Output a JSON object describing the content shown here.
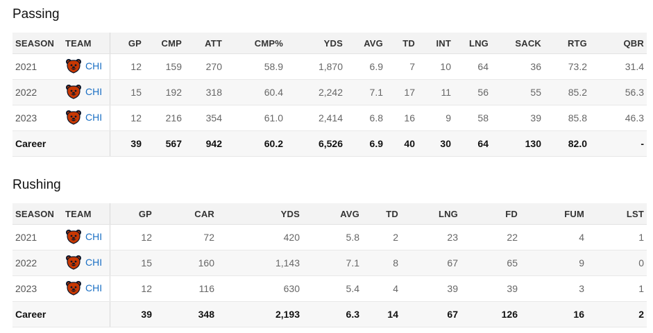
{
  "passing": {
    "title": "Passing",
    "headers": [
      "SEASON",
      "TEAM",
      "GP",
      "CMP",
      "ATT",
      "CMP%",
      "YDS",
      "AVG",
      "TD",
      "INT",
      "LNG",
      "SACK",
      "RTG",
      "QBR"
    ],
    "rows": [
      {
        "season": "2021",
        "team": "CHI",
        "logo": "chicago-bears-logo-icon",
        "values": [
          "12",
          "159",
          "270",
          "58.9",
          "1,870",
          "6.9",
          "7",
          "10",
          "64",
          "36",
          "73.2",
          "31.4"
        ]
      },
      {
        "season": "2022",
        "team": "CHI",
        "logo": "chicago-bears-logo-icon",
        "values": [
          "15",
          "192",
          "318",
          "60.4",
          "2,242",
          "7.1",
          "17",
          "11",
          "56",
          "55",
          "85.2",
          "56.3"
        ]
      },
      {
        "season": "2023",
        "team": "CHI",
        "logo": "chicago-bears-logo-icon",
        "values": [
          "12",
          "216",
          "354",
          "61.0",
          "2,414",
          "6.8",
          "16",
          "9",
          "58",
          "39",
          "85.8",
          "46.3"
        ]
      }
    ],
    "career": {
      "label": "Career",
      "values": [
        "39",
        "567",
        "942",
        "60.2",
        "6,526",
        "6.9",
        "40",
        "30",
        "64",
        "130",
        "82.0",
        "-"
      ]
    }
  },
  "rushing": {
    "title": "Rushing",
    "headers": [
      "SEASON",
      "TEAM",
      "GP",
      "CAR",
      "YDS",
      "AVG",
      "TD",
      "LNG",
      "FD",
      "FUM",
      "LST"
    ],
    "rows": [
      {
        "season": "2021",
        "team": "CHI",
        "logo": "chicago-bears-logo-icon",
        "values": [
          "12",
          "72",
          "420",
          "5.8",
          "2",
          "23",
          "22",
          "4",
          "1"
        ]
      },
      {
        "season": "2022",
        "team": "CHI",
        "logo": "chicago-bears-logo-icon",
        "values": [
          "15",
          "160",
          "1,143",
          "7.1",
          "8",
          "67",
          "65",
          "9",
          "0"
        ]
      },
      {
        "season": "2023",
        "team": "CHI",
        "logo": "chicago-bears-logo-icon",
        "values": [
          "12",
          "116",
          "630",
          "5.4",
          "4",
          "39",
          "39",
          "3",
          "1"
        ]
      }
    ],
    "career": {
      "label": "Career",
      "values": [
        "39",
        "348",
        "2,193",
        "6.3",
        "14",
        "67",
        "126",
        "16",
        "2"
      ]
    }
  },
  "colors": {
    "team_link": "#1a6fc4",
    "logo_navy": "#0b162a",
    "logo_orange": "#c83803"
  }
}
